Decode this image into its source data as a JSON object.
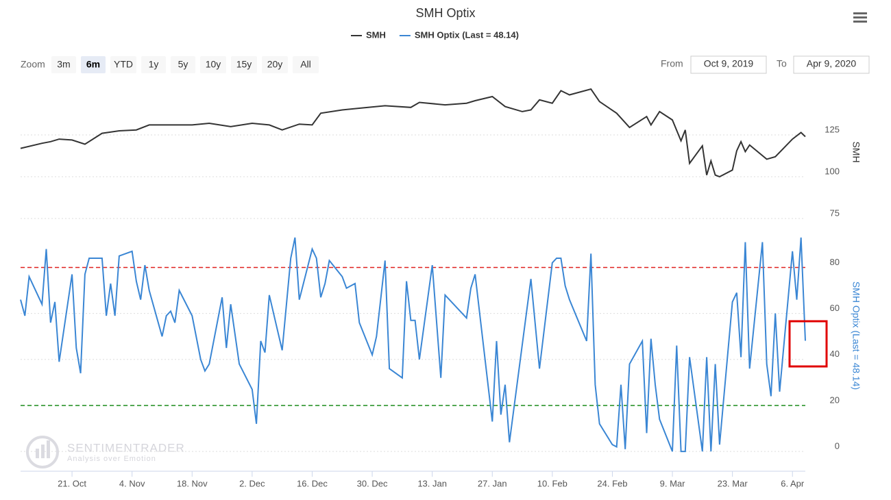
{
  "chart_data": [
    {
      "type": "line",
      "title": "SMH Optix",
      "y_label": "SMH",
      "ylim": [
        75,
        157
      ],
      "yticks": [
        75,
        100,
        125
      ],
      "xlim": [
        "2019-10-09",
        "2020-04-09"
      ],
      "x": [
        "2019-10-09",
        "2019-10-14",
        "2019-10-16",
        "2019-10-18",
        "2019-10-21",
        "2019-10-24",
        "2019-10-28",
        "2019-11-01",
        "2019-11-05",
        "2019-11-08",
        "2019-11-13",
        "2019-11-18",
        "2019-11-22",
        "2019-11-27",
        "2019-12-02",
        "2019-12-06",
        "2019-12-09",
        "2019-12-13",
        "2019-12-16",
        "2019-12-18",
        "2019-12-23",
        "2019-12-27",
        "2020-01-02",
        "2020-01-08",
        "2020-01-10",
        "2020-01-16",
        "2020-01-21",
        "2020-01-23",
        "2020-01-27",
        "2020-01-30",
        "2020-02-03",
        "2020-02-05",
        "2020-02-07",
        "2020-02-10",
        "2020-02-12",
        "2020-02-14",
        "2020-02-19",
        "2020-02-21",
        "2020-02-25",
        "2020-02-28",
        "2020-03-03",
        "2020-03-04",
        "2020-03-06",
        "2020-03-09",
        "2020-03-11",
        "2020-03-12",
        "2020-03-13",
        "2020-03-16",
        "2020-03-17",
        "2020-03-18",
        "2020-03-19",
        "2020-03-20",
        "2020-03-23",
        "2020-03-24",
        "2020-03-25",
        "2020-03-26",
        "2020-03-27",
        "2020-03-31",
        "2020-04-02",
        "2020-04-06",
        "2020-04-08",
        "2020-04-09"
      ],
      "series": [
        {
          "name": "SMH",
          "color": "#333333",
          "values": [
            117,
            120,
            121,
            122.5,
            122,
            119.5,
            126,
            127.5,
            128,
            131,
            131,
            131,
            132,
            130,
            132,
            131,
            128,
            131.5,
            131,
            138,
            140,
            141,
            142.5,
            141.5,
            144.5,
            143,
            144,
            145.5,
            148,
            142,
            139,
            140,
            146,
            144,
            151.5,
            149,
            152.5,
            145,
            138,
            129.5,
            136,
            131,
            139,
            134,
            121.5,
            128,
            108,
            118.5,
            101,
            109.5,
            101,
            100,
            104,
            115.5,
            121,
            115,
            119,
            110.5,
            112,
            122.5,
            126.5,
            124
          ]
        }
      ]
    },
    {
      "type": "line",
      "y_label": "SMH Optix (Last = 48.14)",
      "ylim": [
        -8,
        98
      ],
      "yticks": [
        0,
        20,
        40,
        60,
        80
      ],
      "xlim": [
        "2019-10-09",
        "2020-04-09"
      ],
      "xticks": [
        {
          "value": "2019-10-21",
          "label": "21. Oct"
        },
        {
          "value": "2019-11-04",
          "label": "4. Nov"
        },
        {
          "value": "2019-11-18",
          "label": "18. Nov"
        },
        {
          "value": "2019-12-02",
          "label": "2. Dec"
        },
        {
          "value": "2019-12-16",
          "label": "16. Dec"
        },
        {
          "value": "2019-12-30",
          "label": "30. Dec"
        },
        {
          "value": "2020-01-13",
          "label": "13. Jan"
        },
        {
          "value": "2020-01-27",
          "label": "27. Jan"
        },
        {
          "value": "2020-02-10",
          "label": "10. Feb"
        },
        {
          "value": "2020-02-24",
          "label": "24. Feb"
        },
        {
          "value": "2020-03-09",
          "label": "9. Mar"
        },
        {
          "value": "2020-03-23",
          "label": "23. Mar"
        },
        {
          "value": "2020-04-06",
          "label": "6. Apr"
        }
      ],
      "reference_lines": [
        {
          "value": 80,
          "color": "#e0201e"
        },
        {
          "value": 20,
          "color": "#1a8c1a"
        }
      ],
      "x": [
        "2019-10-09",
        "2019-10-10",
        "2019-10-11",
        "2019-10-14",
        "2019-10-15",
        "2019-10-16",
        "2019-10-17",
        "2019-10-18",
        "2019-10-21",
        "2019-10-22",
        "2019-10-23",
        "2019-10-24",
        "2019-10-25",
        "2019-10-28",
        "2019-10-29",
        "2019-10-30",
        "2019-10-31",
        "2019-11-01",
        "2019-11-04",
        "2019-11-05",
        "2019-11-06",
        "2019-11-07",
        "2019-11-08",
        "2019-11-11",
        "2019-11-12",
        "2019-11-13",
        "2019-11-14",
        "2019-11-15",
        "2019-11-18",
        "2019-11-20",
        "2019-11-21",
        "2019-11-22",
        "2019-11-25",
        "2019-11-26",
        "2019-11-27",
        "2019-11-29",
        "2019-12-02",
        "2019-12-03",
        "2019-12-04",
        "2019-12-05",
        "2019-12-06",
        "2019-12-09",
        "2019-12-11",
        "2019-12-12",
        "2019-12-13",
        "2019-12-16",
        "2019-12-17",
        "2019-12-18",
        "2019-12-19",
        "2019-12-20",
        "2019-12-23",
        "2019-12-24",
        "2019-12-26",
        "2019-12-27",
        "2019-12-30",
        "2019-12-31",
        "2020-01-02",
        "2020-01-03",
        "2020-01-06",
        "2020-01-07",
        "2020-01-08",
        "2020-01-09",
        "2020-01-10",
        "2020-01-13",
        "2020-01-15",
        "2020-01-16",
        "2020-01-21",
        "2020-01-22",
        "2020-01-23",
        "2020-01-27",
        "2020-01-28",
        "2020-01-29",
        "2020-01-30",
        "2020-01-31",
        "2020-02-05",
        "2020-02-07",
        "2020-02-10",
        "2020-02-11",
        "2020-02-12",
        "2020-02-13",
        "2020-02-14",
        "2020-02-18",
        "2020-02-19",
        "2020-02-20",
        "2020-02-21",
        "2020-02-24",
        "2020-02-25",
        "2020-02-26",
        "2020-02-27",
        "2020-02-28",
        "2020-03-02",
        "2020-03-03",
        "2020-03-04",
        "2020-03-05",
        "2020-03-06",
        "2020-03-09",
        "2020-03-10",
        "2020-03-11",
        "2020-03-12",
        "2020-03-13",
        "2020-03-16",
        "2020-03-17",
        "2020-03-18",
        "2020-03-19",
        "2020-03-20",
        "2020-03-23",
        "2020-03-24",
        "2020-03-25",
        "2020-03-26",
        "2020-03-27",
        "2020-03-30",
        "2020-03-31",
        "2020-04-01",
        "2020-04-02",
        "2020-04-03",
        "2020-04-06",
        "2020-04-07",
        "2020-04-08",
        "2020-04-09"
      ],
      "series": [
        {
          "name": "SMH Optix (Last = 48.14)",
          "color": "#3a86d4",
          "values": [
            66,
            59,
            76,
            64,
            88,
            56,
            65,
            39,
            77,
            45,
            34,
            77,
            84,
            84,
            59,
            73,
            59,
            85,
            87,
            74,
            66,
            81,
            70,
            50,
            59,
            61,
            56,
            70,
            59,
            40,
            35,
            38,
            67,
            45,
            64,
            38,
            27,
            12,
            48,
            43,
            68,
            44,
            84,
            93,
            66,
            88,
            84,
            67,
            73,
            83,
            76,
            71,
            73,
            56,
            42,
            50,
            83,
            36,
            32,
            74,
            57,
            57,
            40,
            81,
            32,
            68,
            58,
            71,
            77,
            13,
            48,
            16,
            29,
            4,
            75,
            36,
            82,
            84,
            84,
            72,
            66,
            48,
            86,
            29,
            12,
            3,
            2,
            29,
            1,
            38,
            48,
            8,
            49,
            29,
            14,
            0,
            46,
            0,
            0,
            41,
            0,
            41,
            0,
            38,
            3,
            65,
            69,
            41,
            91,
            36,
            91,
            38,
            24,
            60,
            26,
            87,
            66,
            93,
            48.14
          ]
        }
      ]
    }
  ],
  "range_selector": {
    "label": "Zoom",
    "buttons": [
      "3m",
      "6m",
      "YTD",
      "1y",
      "5y",
      "10y",
      "15y",
      "20y",
      "All"
    ],
    "selected": "6m",
    "from_label": "From",
    "from": "Oct 9, 2019",
    "to_label": "To",
    "to": "Apr 9, 2020"
  },
  "watermark": {
    "name": "SENTIMENTRADER",
    "tagline": "Analysis over Emotion"
  }
}
